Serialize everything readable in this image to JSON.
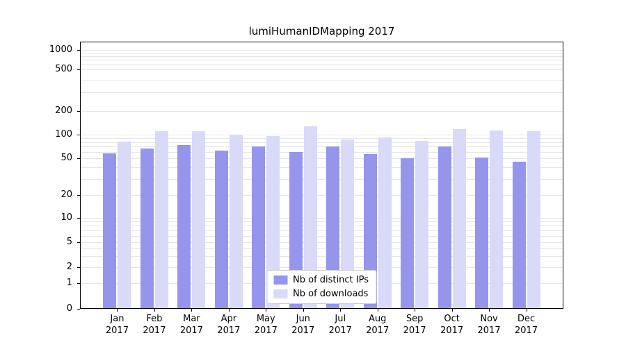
{
  "chart_data": {
    "type": "bar",
    "title": "lumiHumanIDMapping 2017",
    "categories": [
      "Jan 2017",
      "Feb 2017",
      "Mar 2017",
      "Apr 2017",
      "May 2017",
      "Jun 2017",
      "Jul 2017",
      "Aug 2017",
      "Sep 2017",
      "Oct 2017",
      "Nov 2017",
      "Dec 2017"
    ],
    "series": [
      {
        "name": "Nb of distinct IPs",
        "color": "#9595ec",
        "values": [
          58,
          67,
          74,
          62,
          70,
          60,
          71,
          57,
          50,
          71,
          51,
          46
        ]
      },
      {
        "name": "Nb of downloads",
        "color": "#d9d9f8",
        "values": [
          82,
          110,
          110,
          100,
          96,
          127,
          87,
          92,
          83,
          117,
          112,
          110
        ]
      }
    ],
    "yscale": "symlog",
    "yticks": [
      0,
      1,
      2,
      5,
      10,
      20,
      50,
      100,
      200,
      500,
      1000
    ],
    "ylim": [
      0,
      1500
    ],
    "xlabel": "",
    "ylabel": "",
    "grid": true,
    "legend_position": "lower center"
  }
}
